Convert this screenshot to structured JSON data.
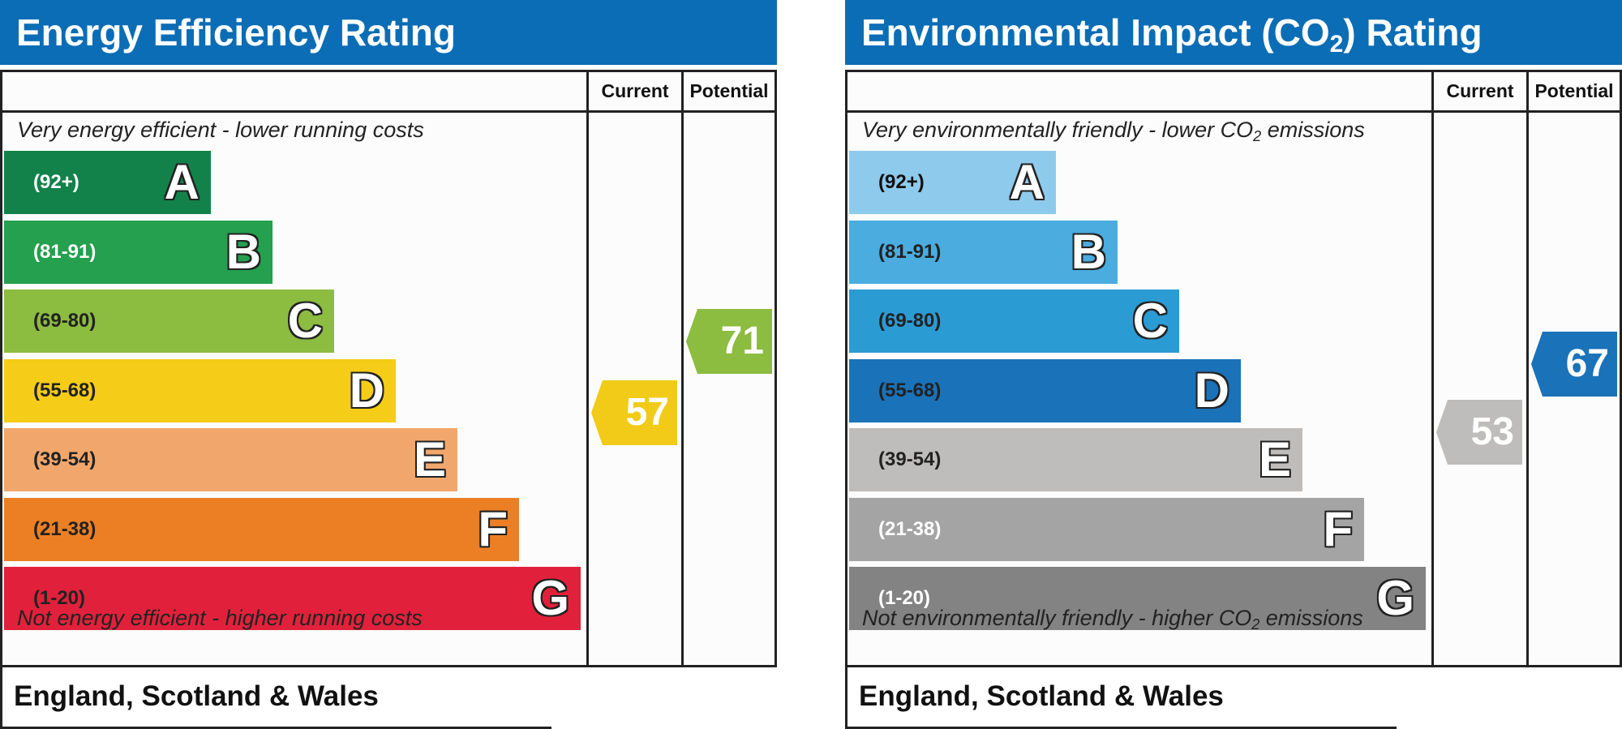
{
  "chart_data": [
    {
      "type": "bar",
      "title_main": "Energy Efficiency Rating",
      "title_sub": "",
      "title_tail": "",
      "columns": [
        "Current",
        "Potential"
      ],
      "top_note": "Very energy efficient - lower running costs",
      "top_note_tail": "",
      "bottom_note": "Not energy efficient - higher running costs",
      "bottom_note_tail": "",
      "footer": "England, Scotland & Wales",
      "bands": [
        {
          "label": "(92+)",
          "letter": "A",
          "min": 92,
          "max": 100,
          "color": "#12824a",
          "text_color": "#ffffff"
        },
        {
          "label": "(81-91)",
          "letter": "B",
          "min": 81,
          "max": 91,
          "color": "#24a04e",
          "text_color": "#ffffff"
        },
        {
          "label": "(69-80)",
          "letter": "C",
          "min": 69,
          "max": 80,
          "color": "#8cbc40",
          "text_color": "#222222"
        },
        {
          "label": "(55-68)",
          "letter": "D",
          "min": 55,
          "max": 68,
          "color": "#f5cc18",
          "text_color": "#222222"
        },
        {
          "label": "(39-54)",
          "letter": "E",
          "min": 39,
          "max": 54,
          "color": "#f1a76c",
          "text_color": "#222222"
        },
        {
          "label": "(21-38)",
          "letter": "F",
          "min": 21,
          "max": 38,
          "color": "#ec7f24",
          "text_color": "#222222"
        },
        {
          "label": "(1-20)",
          "letter": "G",
          "min": 1,
          "max": 20,
          "color": "#e1213b",
          "text_color": "#222222"
        }
      ],
      "current": {
        "value": 57,
        "color": "#f1cb18"
      },
      "potential": {
        "value": 71,
        "color": "#8cbc40"
      }
    },
    {
      "type": "bar",
      "title_main": "Environmental Impact (CO",
      "title_sub": "2",
      "title_tail": ") Rating",
      "columns": [
        "Current",
        "Potential"
      ],
      "top_note": "Very environmentally friendly - lower CO",
      "top_note_tail": " emissions",
      "bottom_note": "Not environmentally friendly - higher CO",
      "bottom_note_tail": " emissions",
      "footer": "England, Scotland & Wales",
      "bands": [
        {
          "label": "(92+)",
          "letter": "A",
          "min": 92,
          "max": 100,
          "color": "#8ecaeb",
          "text_color": "#111111"
        },
        {
          "label": "(81-91)",
          "letter": "B",
          "min": 81,
          "max": 91,
          "color": "#4aacdf",
          "text_color": "#222222"
        },
        {
          "label": "(69-80)",
          "letter": "C",
          "min": 69,
          "max": 80,
          "color": "#2b9bd4",
          "text_color": "#222222"
        },
        {
          "label": "(55-68)",
          "letter": "D",
          "min": 55,
          "max": 68,
          "color": "#1a72b9",
          "text_color": "#222222"
        },
        {
          "label": "(39-54)",
          "letter": "E",
          "min": 39,
          "max": 54,
          "color": "#bebdbb",
          "text_color": "#222222"
        },
        {
          "label": "(21-38)",
          "letter": "F",
          "min": 21,
          "max": 38,
          "color": "#a4a4a4",
          "text_color": "#ffffff"
        },
        {
          "label": "(1-20)",
          "letter": "G",
          "min": 1,
          "max": 20,
          "color": "#838383",
          "text_color": "#ffffff"
        }
      ],
      "current": {
        "value": 53,
        "color": "#bebdbb"
      },
      "potential": {
        "value": 67,
        "color": "#1a72b9"
      }
    }
  ]
}
